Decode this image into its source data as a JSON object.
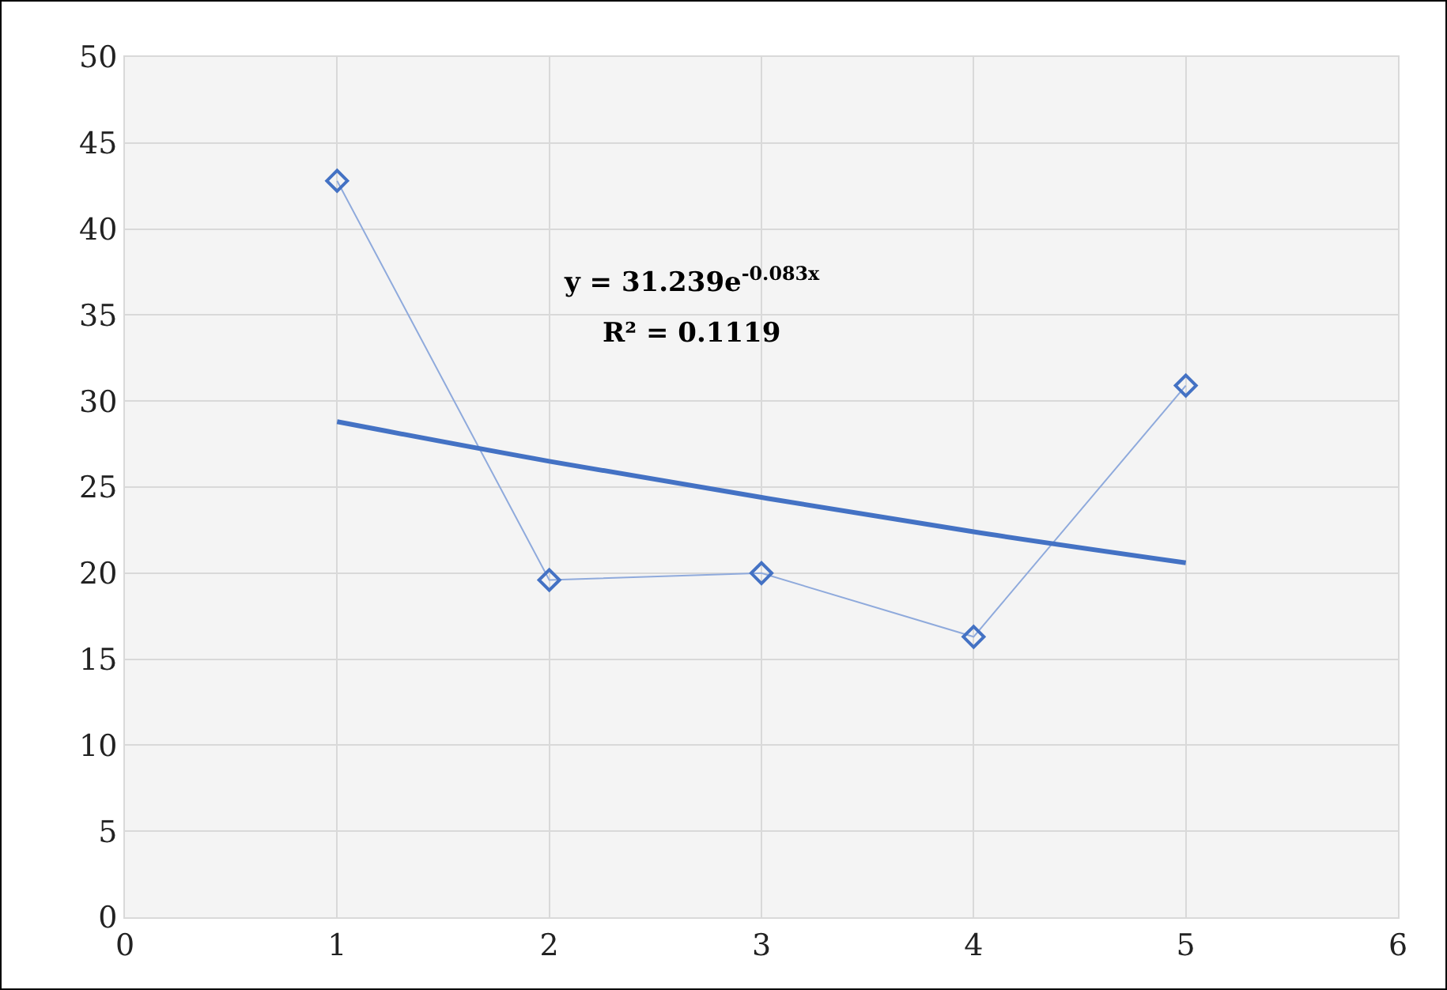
{
  "chart_data": {
    "type": "line",
    "x": [
      1,
      2,
      3,
      4,
      5
    ],
    "series": [
      {
        "color": "#4472c4",
        "values": [
          42.8,
          19.6,
          20.0,
          16.3,
          30.9
        ],
        "marker": "diamond",
        "line_style": "solid"
      },
      {
        "color": "#4472c4",
        "x": [
          1,
          2,
          3,
          4,
          5
        ],
        "values": [
          28.8,
          26.5,
          24.4,
          22.4,
          20.6
        ],
        "marker": "none"
      }
    ],
    "annotations": [
      "y = 31.239e$^{-0.083x}$",
      "R² = 0.1119"
    ],
    "xlim": [
      0,
      6
    ],
    "xticks": [
      0,
      1,
      2,
      3,
      4,
      5,
      6
    ],
    "ylim": [
      0,
      50
    ],
    "yticks": [
      0,
      5,
      10,
      15,
      20,
      25,
      30,
      35,
      40,
      45,
      50
    ],
    "grid": true
  }
}
